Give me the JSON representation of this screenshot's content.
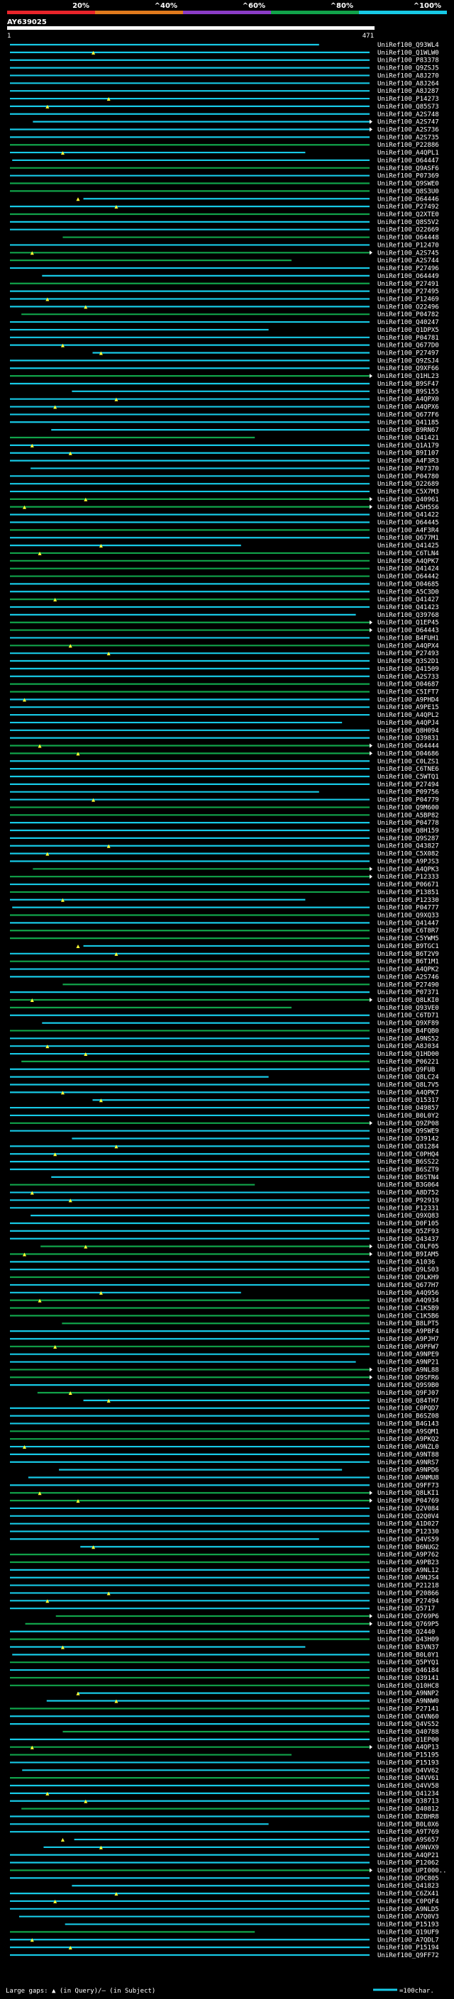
{
  "chart_data": {
    "type": "alignment-overview",
    "title": "AY639025",
    "axis_start_label": "1",
    "axis_end_label": "471",
    "axis_range": [
      1,
      471
    ],
    "color_scale": {
      "labels": [
        "20%",
        "^40%",
        "^60%",
        "^80%",
        "^100%"
      ],
      "colors": [
        "#e8242a",
        "#e07a1d",
        "#8a3cc6",
        "#11a34a",
        "#17c9e6"
      ]
    },
    "legend": {
      "gaps_label": "Large gaps: ▲ (in Query)/– (in Subject)",
      "scale_label": "=100char."
    },
    "hits": [
      "UniRef100_Q93WL4",
      "UniRef100_Q1WLW0",
      "UniRef100_P83378",
      "UniRef100_Q9ZSJ5",
      "UniRef100_A8J270",
      "UniRef100_A8J264",
      "UniRef100_A8J287",
      "UniRef100_P14273",
      "UniRef100_Q85S73",
      "UniRef100_A2S748",
      "UniRef100_A2S747",
      "UniRef100_A2S736",
      "UniRef100_A2S735",
      "UniRef100_P22886",
      "UniRef100_A4QPL1",
      "UniRef100_O64447",
      "UniRef100_Q9ASF6",
      "UniRef100_P07369",
      "UniRef100_Q9SWE0",
      "UniRef100_Q8S3U0",
      "UniRef100_O64446",
      "UniRef100_P27492",
      "UniRef100_Q2XTE0",
      "UniRef100_Q8S5V2",
      "UniRef100_O22669",
      "UniRef100_O64448",
      "UniRef100_P12470",
      "UniRef100_A2S745",
      "UniRef100_A2S744",
      "UniRef100_P27496",
      "UniRef100_O64449",
      "UniRef100_P27491",
      "UniRef100_P27495",
      "UniRef100_P12469",
      "UniRef100_O22496",
      "UniRef100_P04782",
      "UniRef100_Q40247",
      "UniRef100_Q1DPX5",
      "UniRef100_P04781",
      "UniRef100_Q677D0",
      "UniRef100_P27497",
      "UniRef100_Q9ZSJ4",
      "UniRef100_Q9XF66",
      "UniRef100_Q1HL23",
      "UniRef100_B9SF47",
      "UniRef100_B9S155",
      "UniRef100_A4QPX0",
      "UniRef100_A4QPX6",
      "UniRef100_Q677F6",
      "UniRef100_Q41185",
      "UniRef100_B9RN67",
      "UniRef100_Q41421",
      "UniRef100_Q1A179",
      "UniRef100_B9I107",
      "UniRef100_A4F3R3",
      "UniRef100_P07370",
      "UniRef100_P04780",
      "UniRef100_O22689",
      "UniRef100_C5X7M3",
      "UniRef100_Q40961",
      "UniRef100_A5H5S6",
      "UniRef100_Q41422",
      "UniRef100_O64445",
      "UniRef100_A4F3R4",
      "UniRef100_Q677M1",
      "UniRef100_Q41425",
      "UniRef100_C6TLN4",
      "UniRef100_A4QPK7",
      "UniRef100_Q41424",
      "UniRef100_O64442",
      "UniRef100_O04685",
      "UniRef100_A5C3D0",
      "UniRef100_Q41427",
      "UniRef100_Q41423",
      "UniRef100_Q39768",
      "UniRef100_Q1EP45",
      "UniRef100_O64443",
      "UniRef100_B4FUH1",
      "UniRef100_A4QPX4",
      "UniRef100_P27493",
      "UniRef100_Q3S2D1",
      "UniRef100_Q41509",
      "UniRef100_A2S733",
      "UniRef100_O04687",
      "UniRef100_C5IFT7",
      "UniRef100_A9PHD4",
      "UniRef100_A9PE15",
      "UniRef100_A4QPL2",
      "UniRef100_A4QPJ4",
      "UniRef100_Q8H094",
      "UniRef100_Q39831",
      "UniRef100_O64444",
      "UniRef100_O04686",
      "UniRef100_C0LZS1",
      "UniRef100_C6TNE6",
      "UniRef100_C5WTQ1",
      "UniRef100_P27494",
      "UniRef100_P09756",
      "UniRef100_P04779",
      "UniRef100_Q9M600",
      "UniRef100_A5BP82",
      "UniRef100_P04778",
      "UniRef100_Q8H159",
      "UniRef100_Q9S287",
      "UniRef100_Q43827",
      "UniRef100_C5X082",
      "UniRef100_A9PJS3",
      "UniRef100_A4QPK3",
      "UniRef100_P12333",
      "UniRef100_P06671",
      "UniRef100_P13851",
      "UniRef100_P12330",
      "UniRef100_P04777",
      "UniRef100_Q9XQ33",
      "UniRef100_Q41447",
      "UniRef100_C6T8R7",
      "UniRef100_C5YWM5",
      "UniRef100_B9TGC1",
      "UniRef100_B6T2V9",
      "UniRef100_B6T1M1",
      "UniRef100_A4QPK2",
      "UniRef100_A2S746",
      "UniRef100_P27490",
      "UniRef100_P07371",
      "UniRef100_Q8LKI0",
      "UniRef100_Q93VE0",
      "UniRef100_C6TD71",
      "UniRef100_Q9XF89",
      "UniRef100_B4FQB0",
      "UniRef100_A9NS52",
      "UniRef100_A8J034",
      "UniRef100_Q1HD00",
      "UniRef100_P06221",
      "UniRef100_Q9FUB",
      "UniRef100_Q8LC24",
      "UniRef100_Q8L7V5",
      "UniRef100_A4QPK7",
      "UniRef100_Q15317",
      "UniRef100_O49857",
      "UniRef100_B0L0Y2",
      "UniRef100_Q9ZP08",
      "UniRef100_Q9SWE9",
      "UniRef100_Q39142",
      "UniRef100_Q81284",
      "UniRef100_C0PHQ4",
      "UniRef100_B6SS22",
      "UniRef100_B6SZT9",
      "UniRef100_B6STN4",
      "UniRef100_B3G064",
      "UniRef100_A8D752",
      "UniRef100_P92919",
      "UniRef100_P12331",
      "UniRef100_Q9XQ83",
      "UniRef100_D0F105",
      "UniRef100_Q5ZF93",
      "UniRef100_Q43437",
      "UniRef100_C0LF05",
      "UniRef100_B9IAM5",
      "UniRef100_A1036",
      "UniRef100_Q9LS03",
      "UniRef100_Q9LKH9",
      "UniRef100_Q677H7",
      "UniRef100_A4Q956",
      "UniRef100_A4Q934",
      "UniRef100_C1K5B9",
      "UniRef100_C1K5B6",
      "UniRef100_B8LPT5",
      "UniRef100_A9PBF4",
      "UniRef100_A9PJH7",
      "UniRef100_A9PFW7",
      "UniRef100_A9NPE9",
      "UniRef100_A9NP21",
      "UniRef100_A9NL88",
      "UniRef100_Q9SFR6",
      "UniRef100_Q9S9B0",
      "UniRef100_Q9FJ07",
      "UniRef100_Q84TH7",
      "UniRef100_C0PQD7",
      "UniRef100_B6SZ08",
      "UniRef100_B4G143",
      "UniRef100_A9SQM1",
      "UniRef100_A9PKQ2",
      "UniRef100_A9NZL0",
      "UniRef100_A9NT88",
      "UniRef100_A9NRS7",
      "UniRef100_A9NPD6",
      "UniRef100_A9NMU8",
      "UniRef100_Q9FF73",
      "UniRef100_Q8LKI1",
      "UniRef100_P04769",
      "UniRef100_Q2V084",
      "UniRef100_Q2Q0V4",
      "UniRef100_A1D027",
      "UniRef100_P12330",
      "UniRef100_Q4VS59",
      "UniRef100_B6NUG2",
      "UniRef100_A9P762",
      "UniRef100_A9PB23",
      "UniRef100_A9NL12",
      "UniRef100_A9NJS4",
      "UniRef100_P21218",
      "UniRef100_P20866",
      "UniRef100_P27494",
      "UniRef100_Q5717",
      "UniRef100_Q769P6",
      "UniRef100_Q769P5",
      "UniRef100_Q2440",
      "UniRef100_Q43H09",
      "UniRef100_B3VN37",
      "UniRef100_B0L0Y1",
      "UniRef100_Q5PYQ1",
      "UniRef100_Q46184",
      "UniRef100_Q39141",
      "UniRef100_Q10HC8",
      "UniRef100_A9NNP2",
      "UniRef100_A9NNW0",
      "UniRef100_P27141",
      "UniRef100_Q4VN60",
      "UniRef100_Q4VS52",
      "UniRef100_Q40788",
      "UniRef100_Q1EP00",
      "UniRef100_A4QP13",
      "UniRef100_P15195",
      "UniRef100_P15193",
      "UniRef100_Q4VV62",
      "UniRef100_Q4VV61",
      "UniRef100_Q4VV58",
      "UniRef100_Q41234",
      "UniRef100_Q38713",
      "UniRef100_Q40812",
      "UniRef100_B2BHR8",
      "UniRef100_B0L0X6",
      "UniRef100_A9T769",
      "UniRef100_A9S657",
      "UniRef100_A9NVX9",
      "UniRef100_A4QP21",
      "UniRef100_P12062",
      "UniRef100_UPI000..",
      "UniRef100_Q9C805",
      "UniRef100_Q41823",
      "UniRef100_C6ZX41",
      "UniRef100_C0PQF4",
      "UniRef100_A9NLD5",
      "UniRef100_A7Q0V3",
      "UniRef100_P15193",
      "UniRef100_Q19UF9",
      "UniRef100_A7QDL7",
      "UniRef100_P15194",
      "UniRef100_Q9FF72"
    ]
  }
}
